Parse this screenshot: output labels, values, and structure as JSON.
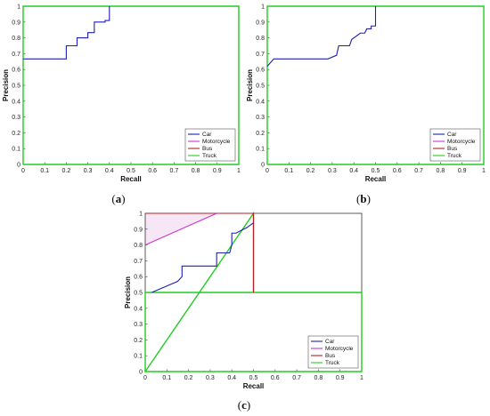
{
  "colors": {
    "Car": "#1f1fb4",
    "Motorcycle": "#cc33cc",
    "Bus": "#b22222",
    "Truck": "#22cc22"
  },
  "chart_data": [
    {
      "panel": "(a)",
      "type": "line",
      "xlabel": "Recall",
      "ylabel": "Precision",
      "xlim": [
        0,
        1
      ],
      "ylim": [
        0,
        1
      ],
      "xticks": [
        "0",
        "0.1",
        "0.2",
        "0.3",
        "0.4",
        "0.5",
        "0.6",
        "0.7",
        "0.8",
        "0.9",
        "1"
      ],
      "yticks": [
        "0",
        "0.1",
        "0.2",
        "0.3",
        "0.4",
        "0.5",
        "0.6",
        "0.7",
        "0.8",
        "0.9",
        "1"
      ],
      "grid": false,
      "legend_position": "bottom-right",
      "legend": [
        "Car",
        "Motorcycle",
        "Bus",
        "Truck"
      ],
      "series": [
        {
          "name": "Car",
          "x": [
            0,
            0.2,
            0.2,
            0.25,
            0.25,
            0.3,
            0.3,
            0.33,
            0.33,
            0.38,
            0.38,
            0.4,
            0.4
          ],
          "y": [
            0.667,
            0.667,
            0.75,
            0.75,
            0.8,
            0.8,
            0.833,
            0.833,
            0.9,
            0.9,
            0.91,
            0.91,
            1.0
          ]
        },
        {
          "name": "Motorcycle",
          "x": [],
          "y": []
        },
        {
          "name": "Bus",
          "x": [],
          "y": []
        },
        {
          "name": "Truck",
          "x": [
            0,
            0,
            1,
            1,
            0
          ],
          "y": [
            0,
            1,
            1,
            0,
            0
          ]
        }
      ]
    },
    {
      "panel": "(b)",
      "type": "line",
      "xlabel": "Recall",
      "ylabel": "Precision",
      "xlim": [
        0,
        1
      ],
      "ylim": [
        0,
        1
      ],
      "xticks": [
        "0",
        "0.1",
        "0.2",
        "0.3",
        "0.4",
        "0.5",
        "0.6",
        "0.7",
        "0.8",
        "0.9",
        "1"
      ],
      "yticks": [
        "0",
        "0.1",
        "0.2",
        "0.3",
        "0.4",
        "0.5",
        "0.6",
        "0.7",
        "0.8",
        "0.9",
        "1"
      ],
      "grid": false,
      "legend_position": "bottom-right",
      "legend": [
        "Car",
        "Motorcycle",
        "Bus",
        "Truck"
      ],
      "series": [
        {
          "name": "Car",
          "x": [
            0,
            0.03,
            0.28,
            0.32,
            0.33,
            0.38,
            0.39,
            0.42,
            0.43,
            0.45,
            0.46,
            0.48,
            0.48,
            0.5,
            0.5
          ],
          "y": [
            0.62,
            0.667,
            0.667,
            0.69,
            0.75,
            0.75,
            0.79,
            0.82,
            0.83,
            0.83,
            0.857,
            0.857,
            0.875,
            0.875,
            1.0
          ]
        },
        {
          "name": "Motorcycle",
          "x": [],
          "y": []
        },
        {
          "name": "Bus",
          "x": [],
          "y": []
        },
        {
          "name": "Truck",
          "x": [
            0,
            0,
            1,
            1,
            0
          ],
          "y": [
            0,
            1,
            1,
            0,
            0
          ]
        }
      ]
    },
    {
      "panel": "(c)",
      "type": "line",
      "xlabel": "Recall",
      "ylabel": "Precision",
      "xlim": [
        0,
        1
      ],
      "ylim": [
        0,
        1
      ],
      "xticks": [
        "0",
        "0.1",
        "0.2",
        "0.3",
        "0.4",
        "0.5",
        "0.6",
        "0.7",
        "0.8",
        "0.9",
        "1"
      ],
      "yticks": [
        "0",
        "0.1",
        "0.2",
        "0.3",
        "0.4",
        "0.5",
        "0.6",
        "0.7",
        "0.8",
        "0.9",
        "1"
      ],
      "grid": false,
      "legend_position": "bottom-right",
      "legend": [
        "Car",
        "Motorcycle",
        "Bus",
        "Truck"
      ],
      "series": [
        {
          "name": "Car",
          "x": [
            0.03,
            0.15,
            0.17,
            0.17,
            0.33,
            0.33,
            0.39,
            0.4,
            0.4,
            0.42,
            0.44,
            0.47,
            0.5
          ],
          "y": [
            0.5,
            0.57,
            0.6,
            0.667,
            0.667,
            0.75,
            0.75,
            0.8,
            0.875,
            0.875,
            0.89,
            0.91,
            0.94
          ]
        },
        {
          "name": "Motorcycle",
          "x": [
            0,
            0.33
          ],
          "y": [
            0.8,
            1.0
          ]
        },
        {
          "name": "Bus",
          "x": [
            0,
            0.5,
            0.5
          ],
          "y": [
            1.0,
            1.0,
            0.5
          ]
        },
        {
          "name": "Truck",
          "x": [
            0,
            0,
            1,
            1,
            0,
            0.5,
            0.5,
            0
          ],
          "y": [
            0,
            0.5,
            0.5,
            0,
            0,
            1,
            0.5,
            0.5
          ]
        }
      ]
    }
  ]
}
